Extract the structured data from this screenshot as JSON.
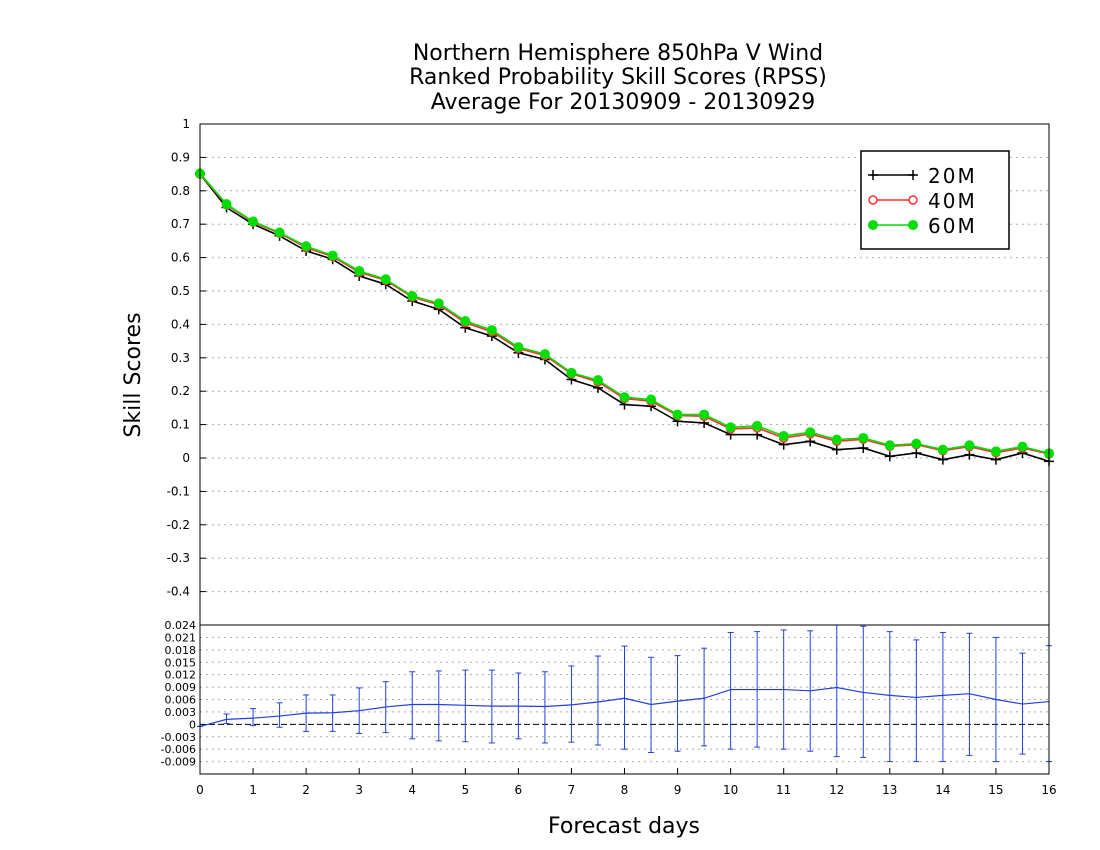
{
  "chart_data": [
    {
      "type": "line",
      "title": [
        "Northern Hemisphere 850hPa V Wind",
        "Ranked Probability Skill Scores (RPSS)",
        "Average For 20130909 - 20130929"
      ],
      "xlabel": "",
      "ylabel": "Skill Scores",
      "xlim": [
        0,
        16
      ],
      "ylim": [
        -0.5,
        1.0
      ],
      "yticks": [
        "1",
        "0.9",
        "0.8",
        "0.7",
        "0.6",
        "0.5",
        "0.4",
        "0.3",
        "0.2",
        "0.1",
        "0",
        "-0.1",
        "-0.2",
        "-0.3",
        "-0.4"
      ],
      "grid": true,
      "legend": "top-right",
      "x": [
        0,
        0.5,
        1,
        1.5,
        2,
        2.5,
        3,
        3.5,
        4,
        4.5,
        5,
        5.5,
        6,
        6.5,
        7,
        7.5,
        8,
        8.5,
        9,
        9.5,
        10,
        10.5,
        11,
        11.5,
        12,
        12.5,
        13,
        13.5,
        14,
        14.5,
        15,
        15.5,
        16
      ],
      "series": [
        {
          "name": "20M",
          "color": "#000000",
          "marker": "plus",
          "values": [
            0.85,
            0.75,
            0.7,
            0.665,
            0.62,
            0.595,
            0.545,
            0.52,
            0.47,
            0.445,
            0.39,
            0.365,
            0.315,
            0.295,
            0.235,
            0.21,
            0.16,
            0.155,
            0.11,
            0.105,
            0.07,
            0.07,
            0.04,
            0.05,
            0.025,
            0.03,
            0.005,
            0.015,
            -0.005,
            0.01,
            -0.005,
            0.015,
            -0.01
          ]
        },
        {
          "name": "40M",
          "color": "#ff3030",
          "marker": "circle-open",
          "values": [
            0.85,
            0.758,
            0.706,
            0.673,
            0.63,
            0.603,
            0.556,
            0.532,
            0.482,
            0.459,
            0.405,
            0.378,
            0.328,
            0.307,
            0.252,
            0.228,
            0.178,
            0.17,
            0.127,
            0.125,
            0.087,
            0.09,
            0.06,
            0.072,
            0.05,
            0.056,
            0.035,
            0.04,
            0.022,
            0.034,
            0.016,
            0.03,
            0.012
          ]
        },
        {
          "name": "60M",
          "color": "#00dd00",
          "marker": "circle-filled",
          "values": [
            0.852,
            0.76,
            0.708,
            0.675,
            0.634,
            0.606,
            0.56,
            0.535,
            0.485,
            0.463,
            0.41,
            0.383,
            0.332,
            0.311,
            0.255,
            0.233,
            0.182,
            0.175,
            0.13,
            0.13,
            0.092,
            0.096,
            0.066,
            0.077,
            0.055,
            0.06,
            0.038,
            0.043,
            0.025,
            0.038,
            0.02,
            0.034,
            0.014
          ]
        }
      ]
    },
    {
      "type": "line",
      "xlabel": "Forecast days",
      "ylabel": "",
      "xlim": [
        0,
        16
      ],
      "ylim": [
        -0.012,
        0.024
      ],
      "xticks": [
        "0",
        "1",
        "2",
        "3",
        "4",
        "5",
        "6",
        "7",
        "8",
        "9",
        "10",
        "11",
        "12",
        "13",
        "14",
        "15",
        "16"
      ],
      "yticks": [
        "0.024",
        "0.021",
        "0.018",
        "0.015",
        "0.012",
        "0.009",
        "0.006",
        "0.003",
        "0",
        "-0.003",
        "-0.006",
        "-0.009"
      ],
      "grid": true,
      "error_bars": true,
      "x": [
        0,
        0.5,
        1,
        1.5,
        2,
        2.5,
        3,
        3.5,
        4,
        4.5,
        5,
        5.5,
        6,
        6.5,
        7,
        7.5,
        8,
        8.5,
        9,
        9.5,
        10,
        10.5,
        11,
        11.5,
        12,
        12.5,
        13,
        13.5,
        14,
        14.5,
        15,
        15.5,
        16
      ],
      "series": [
        {
          "name": "",
          "color": "#2040e0",
          "values": [
            -0.0005,
            0.0012,
            0.0015,
            0.002,
            0.0027,
            0.0028,
            0.0033,
            0.0042,
            0.0048,
            0.0048,
            0.0046,
            0.0044,
            0.0044,
            0.0043,
            0.0047,
            0.0054,
            0.0063,
            0.0048,
            0.0056,
            0.0063,
            0.0084,
            0.0084,
            0.0084,
            0.0081,
            0.0089,
            0.0077,
            0.007,
            0.0065,
            0.007,
            0.0074,
            0.006,
            0.0049,
            0.0055
          ],
          "error_low": [
            -0.0005,
            0.0002,
            -0.0003,
            -0.0007,
            -0.0017,
            -0.0017,
            -0.0022,
            -0.002,
            -0.0035,
            -0.004,
            -0.0042,
            -0.0045,
            -0.0035,
            -0.0045,
            -0.0043,
            -0.005,
            -0.006,
            -0.0068,
            -0.0065,
            -0.0052,
            -0.006,
            -0.0055,
            -0.006,
            -0.0065,
            -0.0078,
            -0.008,
            -0.009,
            -0.009,
            -0.009,
            -0.0075,
            -0.009,
            -0.0072,
            -0.009
          ],
          "error_high": [
            -0.0005,
            0.0025,
            0.0038,
            0.0052,
            0.0071,
            0.0071,
            0.0088,
            0.0103,
            0.0127,
            0.0129,
            0.0131,
            0.0131,
            0.0124,
            0.0127,
            0.0141,
            0.0165,
            0.0189,
            0.0162,
            0.0166,
            0.0184,
            0.0222,
            0.0224,
            0.0228,
            0.0226,
            0.025,
            0.0237,
            0.0224,
            0.0204,
            0.0222,
            0.022,
            0.021,
            0.0172,
            0.019
          ]
        }
      ]
    }
  ]
}
